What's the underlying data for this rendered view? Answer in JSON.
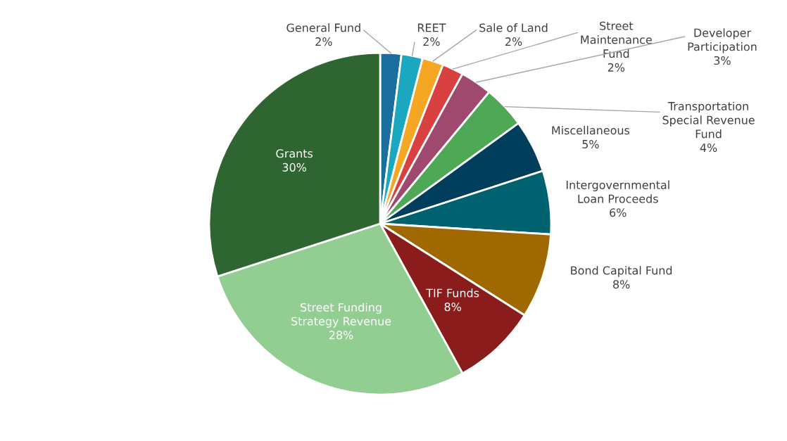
{
  "chart_data": {
    "type": "pie",
    "categories": [
      "General Fund",
      "REET",
      "Sale of Land",
      "Street\nMaintenance\nFund",
      "Developer\nParticipation",
      "Transportation\nSpecial Revenue\nFund",
      "Miscellaneous",
      "Intergovernmental\nLoan Proceeds",
      "Bond Capital Fund",
      "TIF Funds",
      "Street Funding\nStrategy Revenue",
      "Grants"
    ],
    "values": [
      2,
      2,
      2,
      2,
      3,
      4,
      5,
      6,
      8,
      8,
      28,
      30
    ],
    "value_labels": [
      "2%",
      "2%",
      "2%",
      "2%",
      "3%",
      "4%",
      "5%",
      "6%",
      "8%",
      "8%",
      "28%",
      "30%"
    ],
    "colors": [
      "#1a6ea0",
      "#1aa8c0",
      "#f5a623",
      "#d94040",
      "#a0496e",
      "#4fa855",
      "#003e5c",
      "#00626e",
      "#a06800",
      "#8b1c1c",
      "#92cd92",
      "#2e6530"
    ]
  }
}
